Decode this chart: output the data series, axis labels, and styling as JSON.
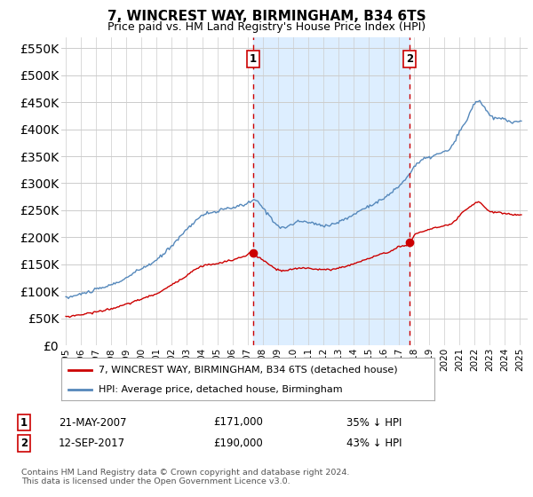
{
  "title": "7, WINCREST WAY, BIRMINGHAM, B34 6TS",
  "subtitle": "Price paid vs. HM Land Registry's House Price Index (HPI)",
  "property_label": "7, WINCREST WAY, BIRMINGHAM, B34 6TS (detached house)",
  "hpi_label": "HPI: Average price, detached house, Birmingham",
  "footnote": "Contains HM Land Registry data © Crown copyright and database right 2024.\nThis data is licensed under the Open Government Licence v3.0.",
  "purchase1": {
    "date": "21-MAY-2007",
    "price": 171000,
    "pct": "35% ↓ HPI"
  },
  "purchase2": {
    "date": "12-SEP-2017",
    "price": 190000,
    "pct": "43% ↓ HPI"
  },
  "sale1_x": 2007.38,
  "sale1_y": 171000,
  "sale2_x": 2017.71,
  "sale2_y": 190000,
  "ylim": [
    0,
    570000
  ],
  "xlim": [
    1994.7,
    2025.5
  ],
  "yticks": [
    0,
    50000,
    100000,
    150000,
    200000,
    250000,
    300000,
    350000,
    400000,
    450000,
    500000,
    550000
  ],
  "property_color": "#cc0000",
  "hpi_color": "#5588bb",
  "shade_color": "#ddeeff",
  "dashed_color": "#cc0000",
  "bg_color": "#ffffff",
  "grid_color": "#cccccc",
  "title_fontsize": 11,
  "subtitle_fontsize": 9
}
